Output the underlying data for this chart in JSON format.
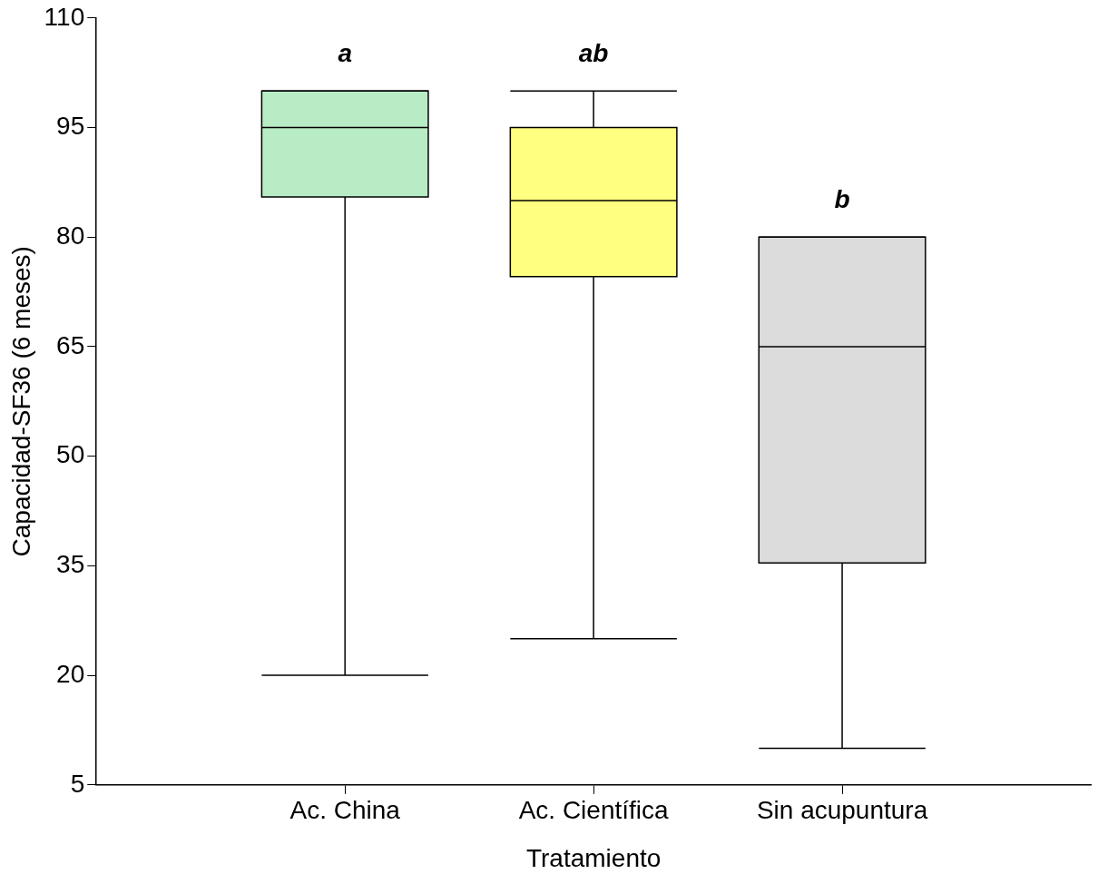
{
  "chart_data": {
    "type": "box",
    "xlabel": "Tratamiento",
    "ylabel": "Capacidad-SF36 (6 meses)",
    "categories": [
      "Ac. China",
      "Ac. Científica",
      "Sin acupuntura"
    ],
    "colors": [
      "#b8ecc4",
      "#ffff80",
      "#dcdcdc"
    ],
    "boxes": [
      {
        "low": 20,
        "q1": 85.5,
        "median": 95,
        "q3": 100,
        "high": 100
      },
      {
        "low": 25,
        "q1": 74.6,
        "median": 85,
        "q3": 95,
        "high": 100
      },
      {
        "low": 10,
        "q1": 35.4,
        "median": 65,
        "q3": 80,
        "high": 80
      }
    ],
    "ylim": [
      5,
      110
    ],
    "yticks": [
      5,
      20,
      35,
      50,
      65,
      80,
      95,
      110
    ],
    "grid": false,
    "legend": false,
    "annotations": [
      "a",
      "ab",
      "b"
    ]
  }
}
